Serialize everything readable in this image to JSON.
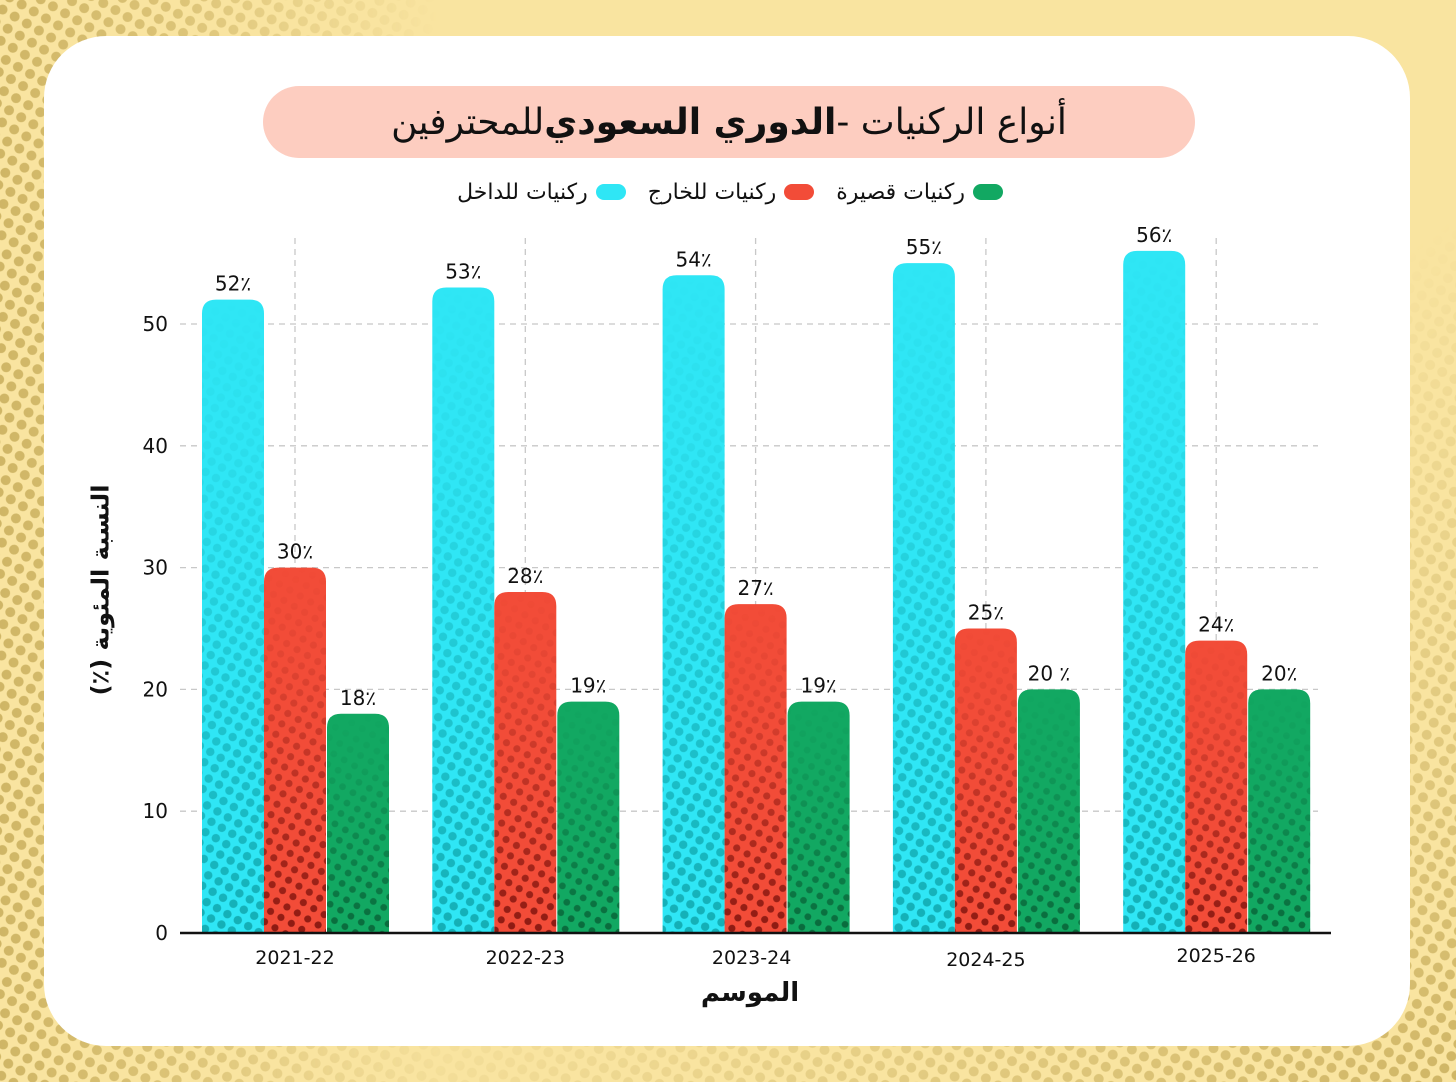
{
  "title": {
    "part1": "أنواع الركنيات - ",
    "part2_bold": "الدوري السعودي",
    "part3": " للمحترفين"
  },
  "colors": {
    "background": "#f9e4a0",
    "dots": "#cfb565",
    "title_bg": "#fdcdc0",
    "inswing": "#2fe6f5",
    "inswing_dark": "#14aeb5",
    "outswing": "#f24c38",
    "outswing_dark": "#8c1a12",
    "short": "#12a862",
    "short_dark": "#0a6a3c"
  },
  "chart_data": {
    "type": "bar",
    "title": "أنواع الركنيات - الدوري السعودي للمحترفين",
    "xlabel": "الموسم",
    "ylabel": "النسبة المئوية (٪)",
    "ylim": [
      0,
      56
    ],
    "yticks": [
      0,
      10,
      20,
      30,
      40,
      50
    ],
    "grid": true,
    "legend_position": "top-center",
    "categories": [
      "2021-22",
      "2022-23",
      "2023-24",
      "2024-25",
      "2025-26"
    ],
    "series": [
      {
        "name": "ركنيات للداخل",
        "color": "#2fe6f5",
        "values": [
          52,
          53,
          54,
          55,
          56
        ],
        "labels": [
          "52٪",
          "53٪",
          "54٪",
          "55٪",
          "56٪"
        ]
      },
      {
        "name": "ركنيات للخارج",
        "color": "#f24c38",
        "values": [
          30,
          28,
          27,
          25,
          24
        ],
        "labels": [
          "30٪",
          "28٪",
          "27٪",
          "25٪",
          "24٪"
        ]
      },
      {
        "name": "ركنيات قصيرة",
        "color": "#12a862",
        "values": [
          18,
          19,
          19,
          20,
          20
        ],
        "labels": [
          "18٪",
          "19٪",
          "19٪",
          "20 ٪",
          "20٪"
        ]
      }
    ]
  }
}
